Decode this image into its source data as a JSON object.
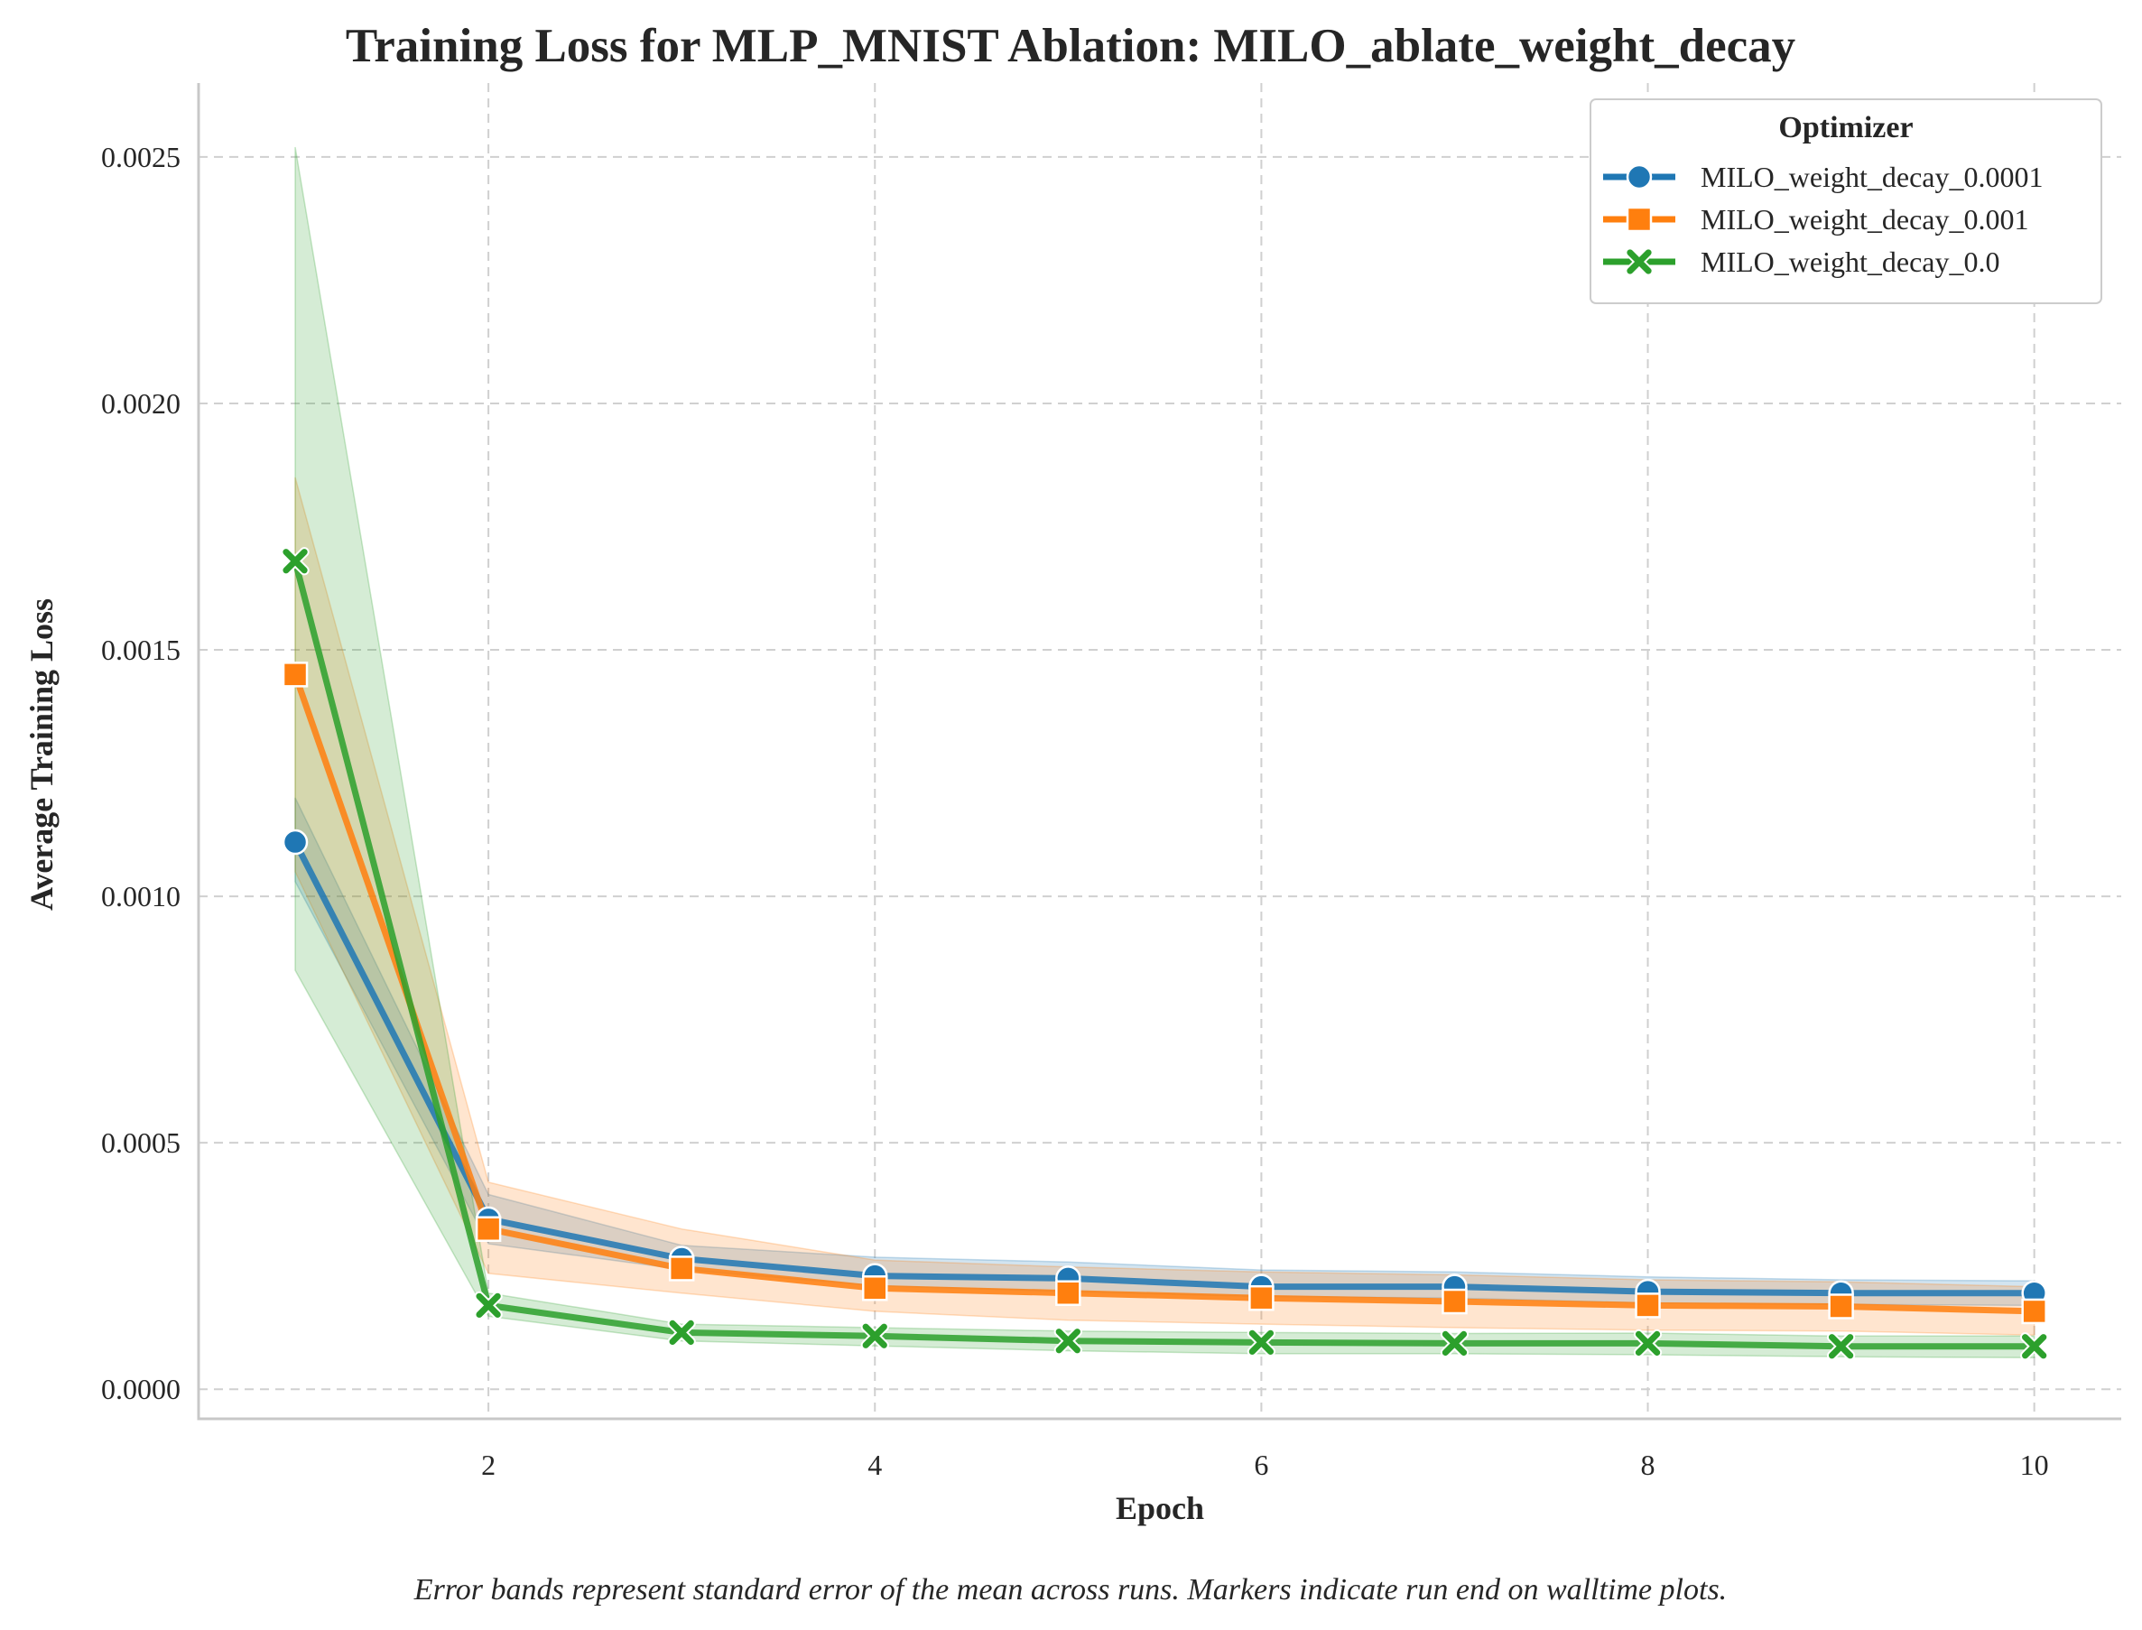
{
  "chart_data": {
    "type": "line",
    "title": "Training Loss for MLP_MNIST Ablation: MILO_ablate_weight_decay",
    "xlabel": "Epoch",
    "ylabel": "Average Training Loss",
    "xlim": [
      0.5,
      10.45
    ],
    "ylim": [
      -6e-05,
      0.00265
    ],
    "xticks": [
      2,
      4,
      6,
      8,
      10
    ],
    "xtick_labels": [
      "2",
      "4",
      "6",
      "8",
      "10"
    ],
    "yticks": [
      0.0,
      0.0005,
      0.001,
      0.0015,
      0.002,
      0.0025
    ],
    "ytick_labels": [
      "0.0000",
      "0.0005",
      "0.0010",
      "0.0015",
      "0.0020",
      "0.0025"
    ],
    "grid": true,
    "legend": {
      "title": "Optimizer",
      "placement": "top-right"
    },
    "x": [
      1,
      2,
      3,
      4,
      5,
      6,
      7,
      8,
      9,
      10
    ],
    "series": [
      {
        "name": "MILO_weight_decay_0.0001",
        "color": "#1f77b4",
        "marker": "circle",
        "values": [
          0.00111,
          0.000345,
          0.000265,
          0.00023,
          0.000225,
          0.000208,
          0.000208,
          0.000198,
          0.000195,
          0.000195
        ],
        "lower": [
          0.00103,
          0.000295,
          0.000243,
          0.00021,
          0.000198,
          0.000188,
          0.000185,
          0.000175,
          0.000172,
          0.00017
        ],
        "upper": [
          0.0012,
          0.000395,
          0.000292,
          0.000268,
          0.000258,
          0.000242,
          0.000238,
          0.000228,
          0.000222,
          0.00022
        ]
      },
      {
        "name": "MILO_weight_decay_0.001",
        "color": "#ff7f0e",
        "marker": "square",
        "values": [
          0.00145,
          0.000325,
          0.000245,
          0.000205,
          0.000195,
          0.000185,
          0.000178,
          0.00017,
          0.000168,
          0.000158
        ],
        "lower": [
          0.00105,
          0.000235,
          0.000195,
          0.000158,
          0.00014,
          0.000132,
          0.000125,
          0.00012,
          0.000118,
          0.00011
        ],
        "upper": [
          0.00185,
          0.00042,
          0.000325,
          0.000262,
          0.000248,
          0.000238,
          0.000232,
          0.000222,
          0.000218,
          0.000208
        ]
      },
      {
        "name": "MILO_weight_decay_0.0",
        "color": "#2ca02c",
        "marker": "x",
        "values": [
          0.00168,
          0.00017,
          0.000115,
          0.000108,
          9.8e-05,
          9.5e-05,
          9.3e-05,
          9.3e-05,
          8.7e-05,
          8.7e-05
        ],
        "lower": [
          0.00085,
          0.000148,
          9.8e-05,
          8.8e-05,
          7.8e-05,
          7.2e-05,
          7.2e-05,
          7e-05,
          6.6e-05,
          6.4e-05
        ],
        "upper": [
          0.00252,
          0.000195,
          0.000132,
          0.000125,
          0.000118,
          0.000115,
          0.000113,
          0.000114,
          0.000108,
          0.000108
        ]
      }
    ],
    "caption": "Error bands represent standard error of the mean across runs. Markers indicate run end on walltime plots."
  }
}
